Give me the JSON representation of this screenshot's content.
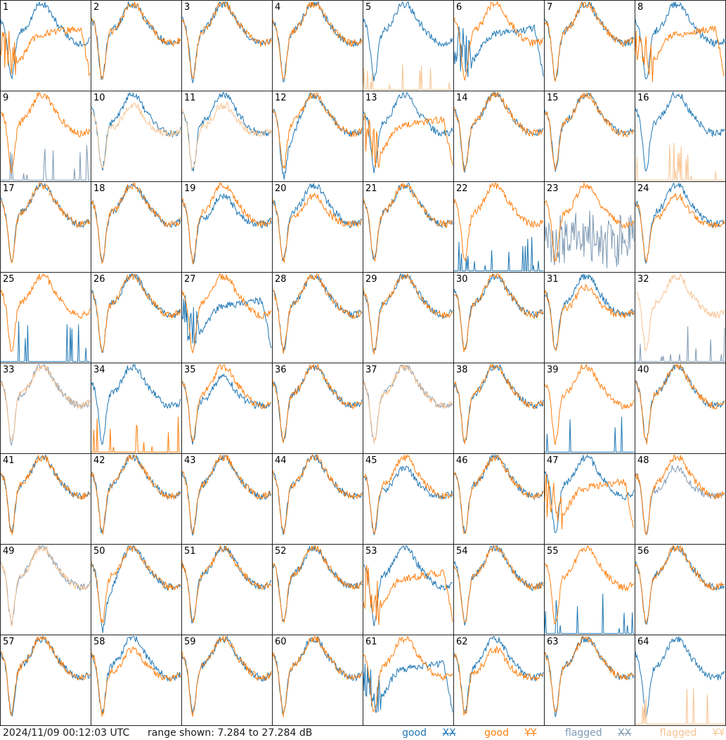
{
  "timestamp": "2024/11/09 00:12:03 UTC",
  "range_text": "range shown: 7.284 to 27.284 dB",
  "legend": {
    "good_xx": {
      "label": "good",
      "pol": "XX",
      "color": "#1f77b4"
    },
    "good_yy": {
      "label": "good",
      "pol": "YY",
      "color": "#ff7f0e"
    },
    "flagged_xx": {
      "label": "flagged",
      "pol": "XX",
      "color": "#7f9ab5"
    },
    "flagged_yy": {
      "label": "flagged",
      "pol": "YY",
      "color": "#f8c391"
    }
  },
  "chart_data": {
    "type": "line",
    "grid": "8x8 small multiples, one panel per input",
    "y_range_db": [
      7.284,
      27.284
    ],
    "panels": [
      {
        "id": 1,
        "xx": "normal",
        "yy": "shape",
        "xf": false,
        "yf": false
      },
      {
        "id": 2,
        "xx": "normal",
        "yy": "normal",
        "xf": false,
        "yf": false
      },
      {
        "id": 3,
        "xx": "normal",
        "yy": "normal",
        "xf": false,
        "yf": false
      },
      {
        "id": 4,
        "xx": "normal",
        "yy": "normal",
        "xf": false,
        "yf": false
      },
      {
        "id": 5,
        "xx": "normal",
        "yy": "spikes",
        "xf": false,
        "yf": true
      },
      {
        "id": 6,
        "xx": "shape",
        "yy": "normal",
        "xf": false,
        "yf": false
      },
      {
        "id": 7,
        "xx": "normal",
        "yy": "normal",
        "xf": false,
        "yf": false
      },
      {
        "id": 8,
        "xx": "normal",
        "yy": "shape",
        "xf": false,
        "yf": false
      },
      {
        "id": 9,
        "xx": "spikes",
        "yy": "normal",
        "xf": true,
        "yf": false
      },
      {
        "id": 10,
        "xx": "normal",
        "yy": "low",
        "xf": false,
        "yf": true
      },
      {
        "id": 11,
        "xx": "normal",
        "yy": "low",
        "xf": false,
        "yf": true
      },
      {
        "id": 12,
        "xx": "dip",
        "yy": "normal",
        "xf": false,
        "yf": false
      },
      {
        "id": 13,
        "xx": "normal",
        "yy": "shape",
        "xf": false,
        "yf": false
      },
      {
        "id": 14,
        "xx": "normal",
        "yy": "normal",
        "xf": false,
        "yf": false
      },
      {
        "id": 15,
        "xx": "normal",
        "yy": "normal",
        "xf": false,
        "yf": false
      },
      {
        "id": 16,
        "xx": "normal",
        "yy": "spikes",
        "xf": false,
        "yf": true
      },
      {
        "id": 17,
        "xx": "normal",
        "yy": "normal",
        "xf": false,
        "yf": false
      },
      {
        "id": 18,
        "xx": "normal",
        "yy": "normal",
        "xf": false,
        "yf": false
      },
      {
        "id": 19,
        "xx": "low",
        "yy": "normal",
        "xf": false,
        "yf": false
      },
      {
        "id": 20,
        "xx": "normal",
        "yy": "low",
        "xf": false,
        "yf": false
      },
      {
        "id": 21,
        "xx": "normal",
        "yy": "normal",
        "xf": false,
        "yf": false
      },
      {
        "id": 22,
        "xx": "spikes",
        "yy": "normal",
        "xf": false,
        "yf": false
      },
      {
        "id": 23,
        "xx": "noisy",
        "yy": "normal",
        "xf": true,
        "yf": false
      },
      {
        "id": 24,
        "xx": "normal",
        "yy": "low",
        "xf": false,
        "yf": false
      },
      {
        "id": 25,
        "xx": "spikes",
        "yy": "normal",
        "xf": false,
        "yf": false
      },
      {
        "id": 26,
        "xx": "normal",
        "yy": "normal",
        "xf": false,
        "yf": false
      },
      {
        "id": 27,
        "xx": "shape",
        "yy": "normal",
        "xf": false,
        "yf": false
      },
      {
        "id": 28,
        "xx": "normal",
        "yy": "normal",
        "xf": false,
        "yf": false
      },
      {
        "id": 29,
        "xx": "normal",
        "yy": "normal",
        "xf": false,
        "yf": false
      },
      {
        "id": 30,
        "xx": "normal",
        "yy": "normal",
        "xf": false,
        "yf": false
      },
      {
        "id": 31,
        "xx": "normal",
        "yy": "low",
        "xf": false,
        "yf": false
      },
      {
        "id": 32,
        "xx": "spikes",
        "yy": "normal",
        "xf": true,
        "yf": true
      },
      {
        "id": 33,
        "xx": "normal",
        "yy": "normal",
        "xf": true,
        "yf": true
      },
      {
        "id": 34,
        "xx": "normal",
        "yy": "spikes",
        "xf": false,
        "yf": false
      },
      {
        "id": 35,
        "xx": "low",
        "yy": "normal",
        "xf": false,
        "yf": false
      },
      {
        "id": 36,
        "xx": "normal",
        "yy": "normal",
        "xf": false,
        "yf": false
      },
      {
        "id": 37,
        "xx": "normal",
        "yy": "normal",
        "xf": true,
        "yf": true
      },
      {
        "id": 38,
        "xx": "normal",
        "yy": "normal",
        "xf": false,
        "yf": false
      },
      {
        "id": 39,
        "xx": "spikes",
        "yy": "normal",
        "xf": false,
        "yf": false
      },
      {
        "id": 40,
        "xx": "normal",
        "yy": "normal",
        "xf": false,
        "yf": false
      },
      {
        "id": 41,
        "xx": "normal",
        "yy": "normal",
        "xf": false,
        "yf": false
      },
      {
        "id": 42,
        "xx": "normal",
        "yy": "normal",
        "xf": false,
        "yf": false
      },
      {
        "id": 43,
        "xx": "normal",
        "yy": "normal",
        "xf": false,
        "yf": false
      },
      {
        "id": 44,
        "xx": "normal",
        "yy": "normal",
        "xf": false,
        "yf": false
      },
      {
        "id": 45,
        "xx": "low",
        "yy": "normal",
        "xf": false,
        "yf": false
      },
      {
        "id": 46,
        "xx": "normal",
        "yy": "normal",
        "xf": false,
        "yf": false
      },
      {
        "id": 47,
        "xx": "normal",
        "yy": "shape",
        "xf": false,
        "yf": false
      },
      {
        "id": 48,
        "xx": "low",
        "yy": "normal",
        "xf": true,
        "yf": false
      },
      {
        "id": 49,
        "xx": "normal",
        "yy": "normal",
        "xf": true,
        "yf": true
      },
      {
        "id": 50,
        "xx": "dip",
        "yy": "normal",
        "xf": false,
        "yf": false
      },
      {
        "id": 51,
        "xx": "normal",
        "yy": "normal",
        "xf": false,
        "yf": false
      },
      {
        "id": 52,
        "xx": "normal",
        "yy": "normal",
        "xf": false,
        "yf": false
      },
      {
        "id": 53,
        "xx": "normal",
        "yy": "shape",
        "xf": false,
        "yf": false
      },
      {
        "id": 54,
        "xx": "normal",
        "yy": "normal",
        "xf": false,
        "yf": false
      },
      {
        "id": 55,
        "xx": "spikes",
        "yy": "normal",
        "xf": false,
        "yf": false
      },
      {
        "id": 56,
        "xx": "normal",
        "yy": "normal",
        "xf": false,
        "yf": false
      },
      {
        "id": 57,
        "xx": "normal",
        "yy": "normal",
        "xf": false,
        "yf": false
      },
      {
        "id": 58,
        "xx": "normal",
        "yy": "low",
        "xf": false,
        "yf": false
      },
      {
        "id": 59,
        "xx": "normal",
        "yy": "normal",
        "xf": false,
        "yf": false
      },
      {
        "id": 60,
        "xx": "normal",
        "yy": "normal",
        "xf": false,
        "yf": false
      },
      {
        "id": 61,
        "xx": "shape",
        "yy": "normal",
        "xf": false,
        "yf": false
      },
      {
        "id": 62,
        "xx": "normal",
        "yy": "low",
        "xf": false,
        "yf": false
      },
      {
        "id": 63,
        "xx": "normal",
        "yy": "normal",
        "xf": false,
        "yf": false
      },
      {
        "id": 64,
        "xx": "normal",
        "yy": "spikes",
        "xf": false,
        "yf": true
      }
    ]
  }
}
